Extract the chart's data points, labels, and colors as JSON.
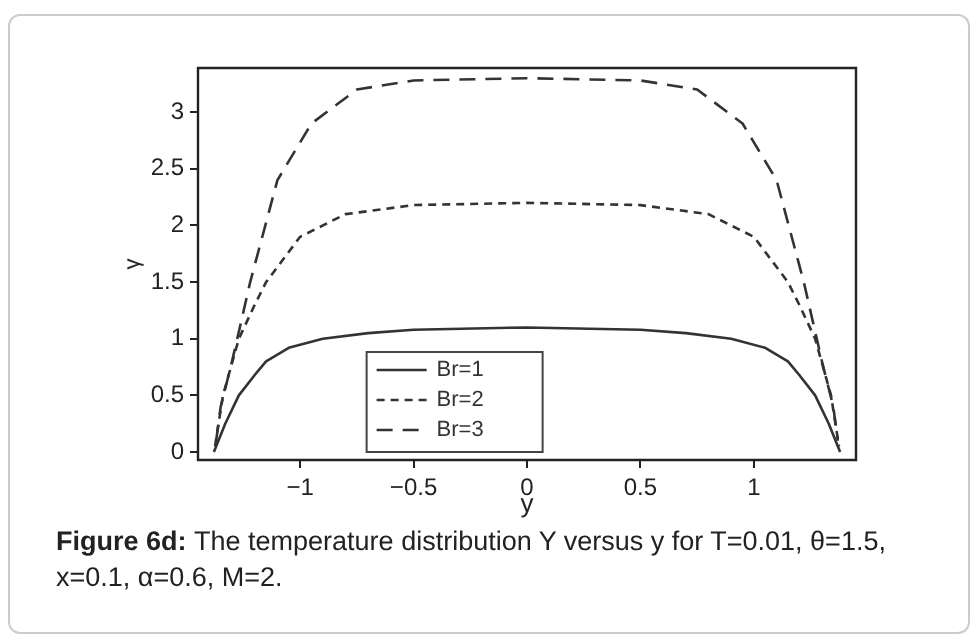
{
  "chart_data": {
    "type": "line",
    "xlabel": "y",
    "ylabel": "γ",
    "xlim": [
      -1.45,
      1.45
    ],
    "ylim": [
      -0.07,
      3.39
    ],
    "xticks": [
      {
        "value": -1,
        "label": "−1"
      },
      {
        "value": -0.5,
        "label": "−0.5"
      },
      0,
      0.5,
      1
    ],
    "yticks": [
      0,
      0.5,
      1,
      1.5,
      2,
      2.5,
      3
    ],
    "grid": false,
    "legend": "bottom",
    "marker": "none",
    "series": [
      {
        "name": "Br=1",
        "color": "#333333",
        "line_style": "solid",
        "x": [
          -1.38,
          -1.33,
          -1.27,
          -1.2,
          -1.15,
          -1.05,
          -0.9,
          -0.7,
          -0.5,
          0,
          0.5,
          0.7,
          0.9,
          1.05,
          1.15,
          1.2,
          1.27,
          1.33,
          1.38
        ],
        "values": [
          0,
          0.25,
          0.5,
          0.68,
          0.8,
          0.92,
          1.0,
          1.05,
          1.08,
          1.1,
          1.08,
          1.05,
          1.0,
          0.92,
          0.8,
          0.68,
          0.5,
          0.25,
          0
        ]
      },
      {
        "name": "Br=2",
        "color": "#333333",
        "line_style": "dotted",
        "x": [
          -1.375,
          -1.34,
          -1.27,
          -1.2,
          -1.15,
          -1.0,
          -0.8,
          -0.5,
          0,
          0.5,
          0.8,
          1.0,
          1.15,
          1.2,
          1.27,
          1.34,
          1.375
        ],
        "values": [
          0.05,
          0.5,
          1.0,
          1.3,
          1.5,
          1.9,
          2.1,
          2.18,
          2.2,
          2.18,
          2.1,
          1.9,
          1.5,
          1.3,
          1.0,
          0.5,
          0.05
        ]
      },
      {
        "name": "Br=3",
        "color": "#333333",
        "line_style": "dashed",
        "x": [
          -1.37,
          -1.35,
          -1.3,
          -1.22,
          -1.1,
          -0.95,
          -0.75,
          -0.5,
          0,
          0.5,
          0.75,
          0.95,
          1.1,
          1.22,
          1.3,
          1.35,
          1.37
        ],
        "values": [
          0.1,
          0.4,
          0.8,
          1.5,
          2.4,
          2.9,
          3.2,
          3.28,
          3.3,
          3.28,
          3.2,
          2.9,
          2.4,
          1.5,
          0.8,
          0.4,
          0.1
        ]
      }
    ],
    "annotations": [
      "Figure 6d:",
      "The temperature distribution Y versus y for T=0.01, θ=1.5, x=0.1, α=0.6, M=2."
    ]
  }
}
